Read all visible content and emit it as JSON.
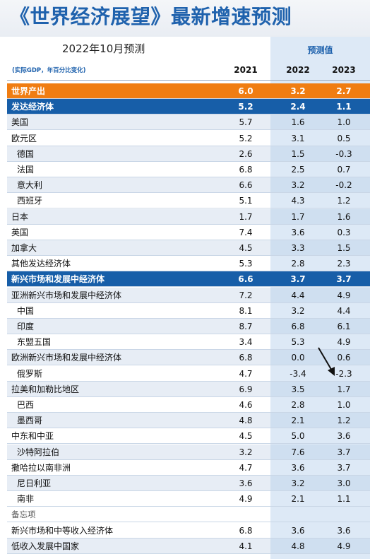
{
  "title": "《世界经济展望》最新增速预测",
  "subtitle": "2022年10月预测",
  "projection_label": "预测值",
  "unit_note": "(实际GDP，年百分比变化)",
  "years": [
    "2021",
    "2022",
    "2023"
  ],
  "colors": {
    "accent_blue": "#1f62ad",
    "world_row": "#f07d12",
    "group_row": "#175ea8",
    "projection_bg": "#dde9f6"
  },
  "chart_data": {
    "type": "table",
    "title": "《世界经济展望》最新增速预测",
    "subtitle": "2022年10月预测",
    "columns": [
      "2021",
      "2022",
      "2023"
    ],
    "rows": [
      {
        "label": "世界产出",
        "values": [
          "6.0",
          "3.2",
          "2.7"
        ],
        "style": "world"
      },
      {
        "label": "发达经济体",
        "values": [
          "5.2",
          "2.4",
          "1.1"
        ],
        "style": "block"
      },
      {
        "label": "美国",
        "values": [
          "5.7",
          "1.6",
          "1.0"
        ],
        "style": "alt"
      },
      {
        "label": "欧元区",
        "values": [
          "5.2",
          "3.1",
          "0.5"
        ],
        "style": "plain"
      },
      {
        "label": "德国",
        "values": [
          "2.6",
          "1.5",
          "-0.3"
        ],
        "style": "alt-indent"
      },
      {
        "label": "法国",
        "values": [
          "6.8",
          "2.5",
          "0.7"
        ],
        "style": "indent"
      },
      {
        "label": "意大利",
        "values": [
          "6.6",
          "3.2",
          "-0.2"
        ],
        "style": "alt-indent"
      },
      {
        "label": "西班牙",
        "values": [
          "5.1",
          "4.3",
          "1.2"
        ],
        "style": "indent"
      },
      {
        "label": "日本",
        "values": [
          "1.7",
          "1.7",
          "1.6"
        ],
        "style": "alt"
      },
      {
        "label": "英国",
        "values": [
          "7.4",
          "3.6",
          "0.3"
        ],
        "style": "plain"
      },
      {
        "label": "加拿大",
        "values": [
          "4.5",
          "3.3",
          "1.5"
        ],
        "style": "alt"
      },
      {
        "label": "其他发达经济体",
        "values": [
          "5.3",
          "2.8",
          "2.3"
        ],
        "style": "plain"
      },
      {
        "label": "新兴市场和发展中经济体",
        "values": [
          "6.6",
          "3.7",
          "3.7"
        ],
        "style": "block"
      },
      {
        "label": "亚洲新兴市场和发展中经济体",
        "values": [
          "7.2",
          "4.4",
          "4.9"
        ],
        "style": "alt"
      },
      {
        "label": "中国",
        "values": [
          "8.1",
          "3.2",
          "4.4"
        ],
        "style": "indent"
      },
      {
        "label": "印度",
        "values": [
          "8.7",
          "6.8",
          "6.1"
        ],
        "style": "alt-indent"
      },
      {
        "label": "东盟五国",
        "values": [
          "3.4",
          "5.3",
          "4.9"
        ],
        "style": "indent"
      },
      {
        "label": "欧洲新兴市场和发展中经济体",
        "values": [
          "6.8",
          "0.0",
          "0.6"
        ],
        "style": "alt"
      },
      {
        "label": "俄罗斯",
        "values": [
          "4.7",
          "-3.4",
          "-2.3"
        ],
        "style": "indent"
      },
      {
        "label": "拉美和加勒比地区",
        "values": [
          "6.9",
          "3.5",
          "1.7"
        ],
        "style": "alt"
      },
      {
        "label": "巴西",
        "values": [
          "4.6",
          "2.8",
          "1.0"
        ],
        "style": "indent"
      },
      {
        "label": "墨西哥",
        "values": [
          "4.8",
          "2.1",
          "1.2"
        ],
        "style": "alt-indent"
      },
      {
        "label": "中东和中亚",
        "values": [
          "4.5",
          "5.0",
          "3.6"
        ],
        "style": "plain"
      },
      {
        "label": "沙特阿拉伯",
        "values": [
          "3.2",
          "7.6",
          "3.7"
        ],
        "style": "alt-indent"
      },
      {
        "label": "撒哈拉以南非洲",
        "values": [
          "4.7",
          "3.6",
          "3.7"
        ],
        "style": "plain"
      },
      {
        "label": "尼日利亚",
        "values": [
          "3.6",
          "3.2",
          "3.0"
        ],
        "style": "alt-indent"
      },
      {
        "label": "南非",
        "values": [
          "4.9",
          "2.1",
          "1.1"
        ],
        "style": "indent"
      },
      {
        "label": "备忘项",
        "values": [
          "",
          "",
          ""
        ],
        "style": "memo"
      },
      {
        "label": "新兴市场和中等收入经济体",
        "values": [
          "6.8",
          "3.6",
          "3.6"
        ],
        "style": "plain"
      },
      {
        "label": "低收入发展中国家",
        "values": [
          "4.1",
          "4.8",
          "4.9"
        ],
        "style": "alt"
      }
    ]
  }
}
